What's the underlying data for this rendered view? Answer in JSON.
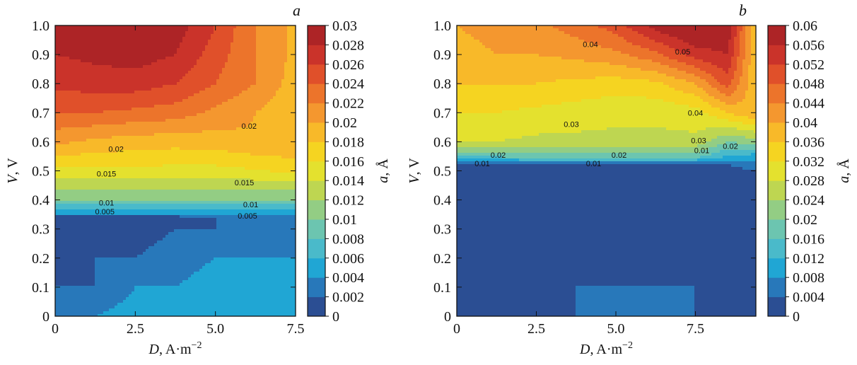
{
  "chart_data": [
    {
      "type": "heatmap",
      "panel_label": "a",
      "xlabel_var": "D",
      "xlabel_unit": ", A·m",
      "xlabel_exp": "−2",
      "ylabel_var": "V",
      "ylabel_unit": ", V",
      "colorbar_var": "a",
      "colorbar_unit": ", Å",
      "xlim": [
        0,
        7.5
      ],
      "ylim": [
        0,
        1.0
      ],
      "xticks": [
        "0",
        "2.5",
        "5.0",
        "7.5"
      ],
      "yticks": [
        "0",
        "0.1",
        "0.2",
        "0.3",
        "0.4",
        "0.5",
        "0.6",
        "0.7",
        "0.8",
        "0.9",
        "1.0"
      ],
      "colorbar_range": [
        0,
        0.03
      ],
      "colorbar_ticks": [
        "0",
        "0.002",
        "0.004",
        "0.006",
        "0.008",
        "0.01",
        "0.012",
        "0.014",
        "0.016",
        "0.018",
        "0.02",
        "0.022",
        "0.024",
        "0.026",
        "0.028",
        "0.03"
      ],
      "x": [
        0,
        1.25,
        2.5,
        3.75,
        5.0,
        6.25,
        7.5
      ],
      "y": [
        0,
        0.1,
        0.2,
        0.3,
        0.34,
        0.35,
        0.4,
        0.5,
        0.6,
        0.7,
        0.8,
        0.9,
        1.0
      ],
      "z": [
        [
          0.002,
          0.004,
          0.005,
          0.005,
          0.006,
          0.006,
          0.006
        ],
        [
          0.002,
          0.002,
          0.004,
          0.004,
          0.005,
          0.005,
          0.005
        ],
        [
          0.0,
          0.002,
          0.002,
          0.003,
          0.004,
          0.004,
          0.004
        ],
        [
          0.0,
          0.0,
          0.001,
          0.002,
          0.002,
          0.003,
          0.003
        ],
        [
          0.0,
          0.0,
          0.0,
          0.001,
          0.002,
          0.002,
          0.002
        ],
        [
          0.004,
          0.004,
          0.004,
          0.004,
          0.004,
          0.004,
          0.004
        ],
        [
          0.01,
          0.01,
          0.01,
          0.01,
          0.01,
          0.01,
          0.01
        ],
        [
          0.0155,
          0.0155,
          0.0155,
          0.0153,
          0.0153,
          0.0158,
          0.0165
        ],
        [
          0.0205,
          0.0195,
          0.019,
          0.0188,
          0.019,
          0.0198,
          0.02
        ],
        [
          0.024,
          0.024,
          0.0235,
          0.023,
          0.0215,
          0.02,
          0.018
        ],
        [
          0.0265,
          0.027,
          0.027,
          0.026,
          0.024,
          0.022,
          0.019
        ],
        [
          0.028,
          0.0285,
          0.029,
          0.028,
          0.025,
          0.022,
          0.0195
        ],
        [
          0.029,
          0.029,
          0.0305,
          0.029,
          0.026,
          0.022,
          0.0195
        ]
      ],
      "contour_labels": [
        {
          "text": "0.02",
          "x": 1.9,
          "y": 0.575
        },
        {
          "text": "0.02",
          "x": 6.05,
          "y": 0.655
        },
        {
          "text": "0.015",
          "x": 1.6,
          "y": 0.49
        },
        {
          "text": "0.015",
          "x": 5.9,
          "y": 0.46
        },
        {
          "text": "0.01",
          "x": 1.6,
          "y": 0.39
        },
        {
          "text": "0.01",
          "x": 6.1,
          "y": 0.385
        },
        {
          "text": "0.005",
          "x": 1.55,
          "y": 0.36
        },
        {
          "text": "0.005",
          "x": 6.0,
          "y": 0.345
        }
      ]
    },
    {
      "type": "heatmap",
      "panel_label": "b",
      "xlabel_var": "D",
      "xlabel_unit": ", A·m",
      "xlabel_exp": "−2",
      "ylabel_var": "V",
      "ylabel_unit": ", V",
      "colorbar_var": "a",
      "colorbar_unit": ", Å",
      "xlim": [
        0,
        9.4
      ],
      "ylim": [
        0,
        1.0
      ],
      "xticks": [
        "0",
        "2.5",
        "5.0",
        "7.5"
      ],
      "xtick_values": [
        0,
        2.5,
        5.0,
        7.5
      ],
      "yticks": [
        "0",
        "0.1",
        "0.2",
        "0.3",
        "0.4",
        "0.5",
        "0.6",
        "0.7",
        "0.8",
        "0.9",
        "1.0"
      ],
      "colorbar_range": [
        0,
        0.06
      ],
      "colorbar_ticks": [
        "0",
        "0.004",
        "0.008",
        "0.012",
        "0.016",
        "0.02",
        "0.024",
        "0.028",
        "0.032",
        "0.036",
        "0.04",
        "0.044",
        "0.048",
        "0.052",
        "0.056",
        "0.06"
      ],
      "x": [
        0,
        1.25,
        2.5,
        3.75,
        5.0,
        6.25,
        7.5,
        8.5,
        9.4
      ],
      "y": [
        0,
        0.1,
        0.2,
        0.3,
        0.4,
        0.5,
        0.52,
        0.55,
        0.6,
        0.7,
        0.8,
        0.9,
        1.0
      ],
      "z": [
        [
          0.002,
          0.003,
          0.003,
          0.004,
          0.004,
          0.004,
          0.004,
          0.003,
          0.002
        ],
        [
          0.001,
          0.002,
          0.003,
          0.004,
          0.004,
          0.004,
          0.004,
          0.003,
          0.002
        ],
        [
          0.0,
          0.001,
          0.002,
          0.003,
          0.003,
          0.003,
          0.003,
          0.002,
          0.001
        ],
        [
          0.0,
          0.0,
          0.001,
          0.002,
          0.002,
          0.002,
          0.002,
          0.001,
          0.0
        ],
        [
          0.0,
          0.0,
          0.0,
          0.0,
          0.0,
          0.0,
          0.0,
          0.0,
          0.0
        ],
        [
          0.0,
          0.0,
          0.0,
          0.0,
          0.0,
          0.0,
          0.0,
          0.002,
          0.004
        ],
        [
          0.004,
          0.004,
          0.004,
          0.004,
          0.004,
          0.004,
          0.004,
          0.004,
          0.006
        ],
        [
          0.016,
          0.017,
          0.018,
          0.018,
          0.018,
          0.018,
          0.018,
          0.012,
          0.01
        ],
        [
          0.029,
          0.028,
          0.027,
          0.027,
          0.027,
          0.027,
          0.027,
          0.02,
          0.022
        ],
        [
          0.032,
          0.032,
          0.031,
          0.03,
          0.029,
          0.029,
          0.03,
          0.036,
          0.04
        ],
        [
          0.036,
          0.036,
          0.036,
          0.035,
          0.034,
          0.035,
          0.04,
          0.05,
          0.036
        ],
        [
          0.039,
          0.04,
          0.04,
          0.041,
          0.043,
          0.047,
          0.054,
          0.056,
          0.036
        ],
        [
          0.04,
          0.041,
          0.043,
          0.046,
          0.05,
          0.058,
          0.062,
          0.06,
          0.036
        ]
      ],
      "contour_labels": [
        {
          "text": "0.04",
          "x": 4.2,
          "y": 0.935
        },
        {
          "text": "0.05",
          "x": 7.1,
          "y": 0.91
        },
        {
          "text": "0.04",
          "x": 7.5,
          "y": 0.7
        },
        {
          "text": "0.03",
          "x": 3.6,
          "y": 0.66
        },
        {
          "text": "0.03",
          "x": 7.6,
          "y": 0.605
        },
        {
          "text": "0.02",
          "x": 1.3,
          "y": 0.555
        },
        {
          "text": "0.02",
          "x": 5.1,
          "y": 0.555
        },
        {
          "text": "0.01",
          "x": 0.8,
          "y": 0.525
        },
        {
          "text": "0.01",
          "x": 4.3,
          "y": 0.525
        },
        {
          "text": "0.01",
          "x": 7.7,
          "y": 0.57
        },
        {
          "text": "0.02",
          "x": 8.6,
          "y": 0.585
        }
      ]
    }
  ],
  "colormap": [
    "#2c3a7d",
    "#2a6cb3",
    "#20a6d4",
    "#54bfc8",
    "#7cc9a0",
    "#b5d35a",
    "#e4e12e",
    "#f9d11e",
    "#f7a931",
    "#ef7d2b",
    "#e0502a",
    "#c42c2a",
    "#9e1f24"
  ]
}
